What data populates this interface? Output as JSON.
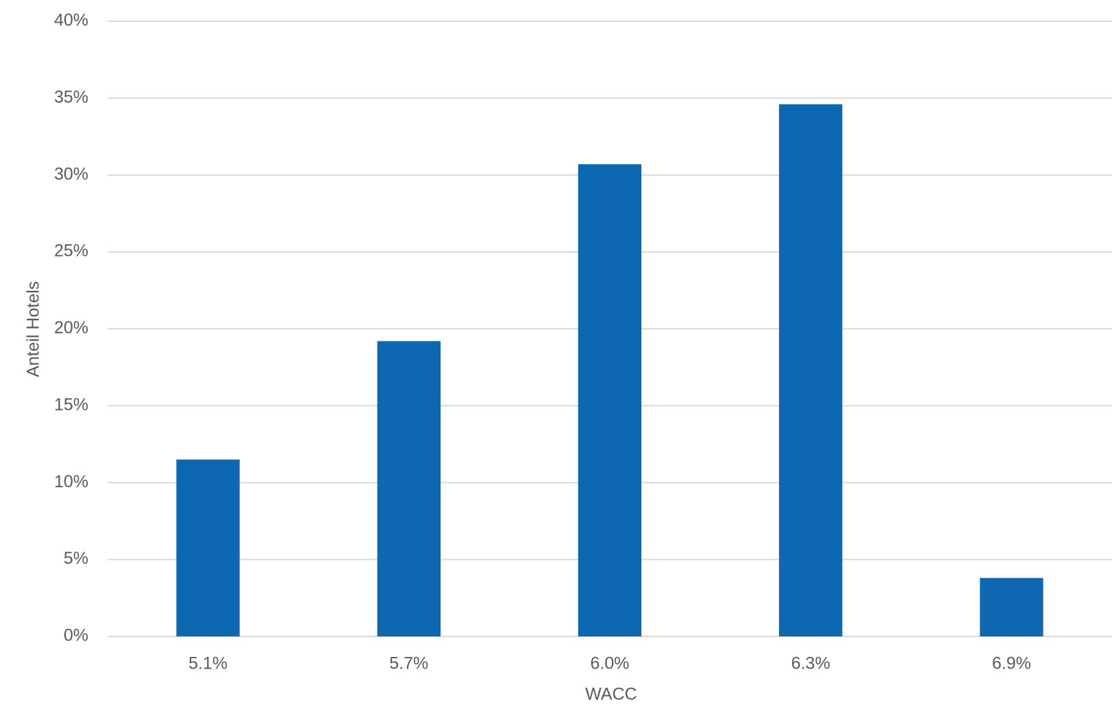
{
  "chart_data": {
    "type": "bar",
    "x_label": "WACC",
    "y_label": "Anteil Hotels",
    "categories": [
      "5.1%",
      "5.7%",
      "6.0%",
      "6.3%",
      "6.9%"
    ],
    "values": [
      11.5,
      19.2,
      30.7,
      34.6,
      3.8
    ],
    "color": "#0e68b1",
    "ylim": [
      0,
      40
    ],
    "yticks": [
      {
        "value": 0,
        "label": "0%"
      },
      {
        "value": 5,
        "label": "5%"
      },
      {
        "value": 10,
        "label": "10%"
      },
      {
        "value": 15,
        "label": "15%"
      },
      {
        "value": 20,
        "label": "20%"
      },
      {
        "value": 25,
        "label": "25%"
      },
      {
        "value": 30,
        "label": "30%"
      },
      {
        "value": 35,
        "label": "35%"
      },
      {
        "value": 40,
        "label": "40%"
      }
    ],
    "grid": true
  }
}
